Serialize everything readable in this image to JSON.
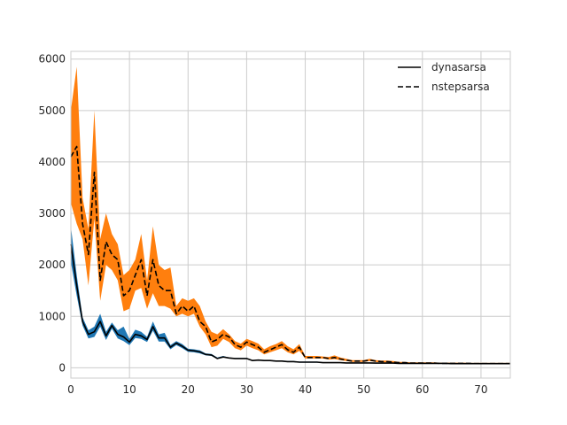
{
  "chart_data": {
    "type": "line",
    "title": "",
    "xlabel": "",
    "ylabel": "",
    "xlim": [
      0,
      75
    ],
    "ylim": [
      -200,
      6150
    ],
    "xticks": [
      0,
      10,
      20,
      30,
      40,
      50,
      60,
      70
    ],
    "yticks": [
      0,
      1000,
      2000,
      3000,
      4000,
      5000,
      6000
    ],
    "grid": true,
    "legend_position": "top-right",
    "x": [
      0,
      1,
      2,
      3,
      4,
      5,
      6,
      7,
      8,
      9,
      10,
      11,
      12,
      13,
      14,
      15,
      16,
      17,
      18,
      19,
      20,
      21,
      22,
      23,
      24,
      25,
      26,
      27,
      28,
      29,
      30,
      31,
      32,
      33,
      34,
      35,
      36,
      37,
      38,
      39,
      40,
      41,
      42,
      43,
      44,
      45,
      46,
      47,
      48,
      49,
      50,
      51,
      52,
      53,
      54,
      55,
      56,
      57,
      58,
      59,
      60,
      61,
      62,
      63,
      64,
      65,
      66,
      67,
      68,
      69,
      70,
      71,
      72,
      73,
      74,
      75
    ],
    "series": [
      {
        "name": "dynasarsa",
        "linestyle": "solid",
        "line_color": "#000000",
        "band_color": "#1f77b4",
        "values": [
          2400,
          1600,
          900,
          650,
          700,
          900,
          620,
          820,
          650,
          600,
          500,
          650,
          620,
          550,
          800,
          580,
          580,
          400,
          480,
          420,
          340,
          330,
          310,
          260,
          250,
          180,
          210,
          190,
          180,
          180,
          180,
          140,
          150,
          140,
          140,
          130,
          130,
          120,
          120,
          110,
          110,
          110,
          110,
          100,
          100,
          100,
          100,
          95,
          95,
          95,
          95,
          95,
          90,
          90,
          90,
          90,
          85,
          85,
          85,
          85,
          85,
          85,
          85,
          85,
          85,
          80,
          80,
          80,
          80,
          80,
          80,
          80,
          80,
          80,
          80,
          80
        ],
        "lower": [
          2050,
          1400,
          820,
          570,
          600,
          800,
          540,
          760,
          570,
          520,
          440,
          580,
          560,
          500,
          720,
          510,
          510,
          360,
          440,
          380,
          310,
          300,
          280,
          240,
          230,
          170,
          200,
          180,
          170,
          170,
          170,
          130,
          140,
          130,
          130,
          120,
          120,
          110,
          110,
          100,
          100,
          100,
          100,
          95,
          95,
          95,
          95,
          90,
          90,
          90,
          90,
          90,
          85,
          85,
          85,
          85,
          80,
          80,
          80,
          80,
          80,
          80,
          80,
          80,
          80,
          75,
          75,
          75,
          75,
          75,
          75,
          75,
          75,
          75,
          75,
          75
        ],
        "upper": [
          2750,
          1800,
          980,
          730,
          800,
          1050,
          700,
          880,
          730,
          800,
          560,
          740,
          700,
          600,
          900,
          650,
          680,
          440,
          520,
          460,
          370,
          360,
          340,
          280,
          270,
          200,
          230,
          200,
          190,
          190,
          190,
          150,
          160,
          150,
          150,
          140,
          140,
          130,
          130,
          120,
          120,
          120,
          120,
          110,
          110,
          110,
          110,
          100,
          100,
          100,
          100,
          100,
          95,
          95,
          95,
          95,
          90,
          90,
          90,
          90,
          90,
          90,
          90,
          90,
          90,
          85,
          85,
          85,
          85,
          85,
          85,
          85,
          85,
          85,
          85,
          85
        ]
      },
      {
        "name": "nstepsarsa",
        "linestyle": "dashed",
        "line_color": "#000000",
        "band_color": "#ff7f0e",
        "values": [
          4100,
          4300,
          2800,
          2200,
          3800,
          1700,
          2450,
          2200,
          2100,
          1400,
          1500,
          1800,
          2100,
          1400,
          2100,
          1600,
          1500,
          1500,
          1050,
          1200,
          1100,
          1200,
          900,
          800,
          500,
          550,
          650,
          600,
          450,
          400,
          500,
          450,
          400,
          300,
          350,
          400,
          450,
          350,
          300,
          400,
          200,
          200,
          200,
          200,
          180,
          200,
          170,
          150,
          130,
          130,
          130,
          150,
          130,
          120,
          120,
          110,
          100,
          100,
          90,
          90,
          90,
          90,
          90,
          85,
          85,
          85,
          85,
          85,
          85,
          80,
          80,
          80,
          80,
          80,
          80,
          80
        ],
        "lower": [
          3200,
          2800,
          2500,
          1600,
          2900,
          1300,
          2000,
          1900,
          1700,
          1100,
          1150,
          1500,
          1550,
          1150,
          1450,
          1200,
          1200,
          1150,
          1000,
          1050,
          1000,
          1050,
          800,
          650,
          400,
          430,
          560,
          500,
          380,
          340,
          430,
          380,
          340,
          260,
          300,
          340,
          380,
          300,
          260,
          330,
          180,
          180,
          180,
          180,
          160,
          170,
          150,
          130,
          115,
          115,
          115,
          130,
          115,
          105,
          105,
          95,
          90,
          90,
          80,
          80,
          80,
          80,
          80,
          75,
          75,
          75,
          75,
          75,
          75,
          70,
          70,
          70,
          70,
          70,
          70,
          70
        ],
        "upper": [
          5000,
          5850,
          3300,
          2700,
          5000,
          2500,
          3000,
          2600,
          2400,
          1800,
          1900,
          2100,
          2600,
          1700,
          2750,
          2000,
          1900,
          1950,
          1200,
          1350,
          1300,
          1350,
          1200,
          900,
          700,
          650,
          750,
          650,
          520,
          470,
          560,
          520,
          470,
          360,
          420,
          460,
          520,
          420,
          360,
          460,
          230,
          230,
          230,
          220,
          210,
          240,
          200,
          175,
          150,
          150,
          150,
          175,
          150,
          140,
          140,
          130,
          115,
          115,
          105,
          105,
          105,
          105,
          105,
          100,
          100,
          100,
          100,
          100,
          95,
          95,
          95,
          95,
          95,
          95,
          95,
          95
        ]
      }
    ]
  }
}
